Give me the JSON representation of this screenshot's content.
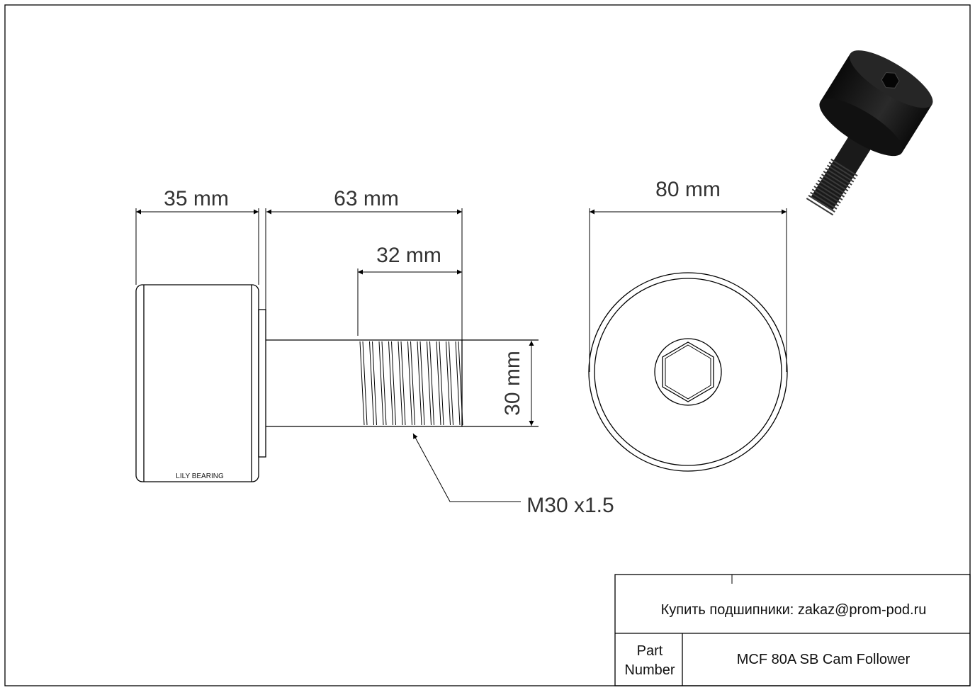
{
  "drawing": {
    "brand_label": "LILY BEARING",
    "dimensions": {
      "roller_width": "35 mm",
      "overall_length": "63 mm",
      "thread_length": "32 mm",
      "stud_diameter": "30 mm",
      "outer_diameter": "80 mm",
      "thread_spec": "M30 x1.5"
    }
  },
  "title_block": {
    "contact": "Купить подшипники: zakaz@prom-pod.ru",
    "part_number_label_line1": "Part",
    "part_number_label_line2": "Number",
    "part_number_value": "MCF 80A SB Cam Follower"
  }
}
